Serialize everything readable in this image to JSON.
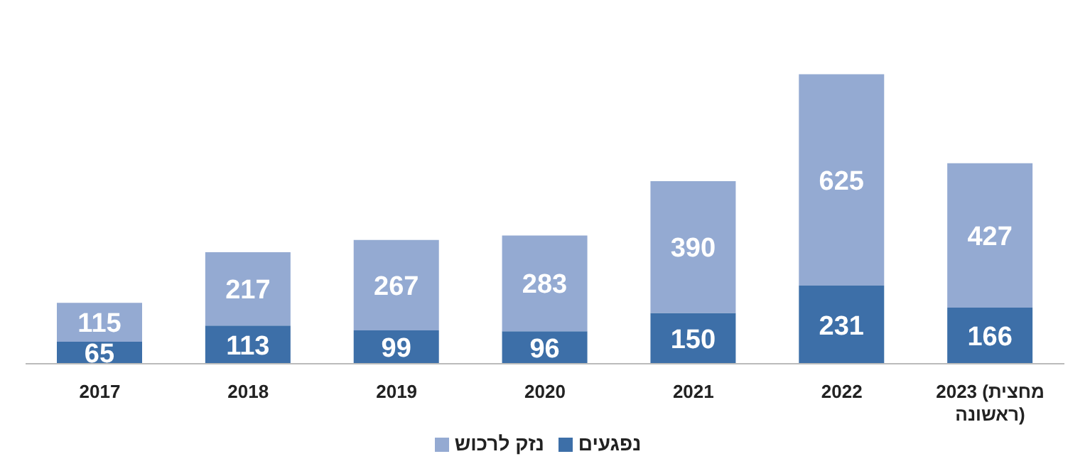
{
  "chart_data": {
    "type": "bar",
    "stacked": true,
    "data_labels": true,
    "legend": "bottom",
    "categories": [
      "2017",
      "2018",
      "2019",
      "2020",
      "2021",
      "2022",
      "2023 (מחצית ראשונה)"
    ],
    "series": [
      {
        "name": "נפגעים",
        "color": "#3d6fa8",
        "values": [
          65,
          113,
          99,
          96,
          150,
          231,
          166
        ]
      },
      {
        "name": "נזק לרכוש",
        "color": "#94aad2",
        "values": [
          115,
          217,
          267,
          283,
          390,
          625,
          427
        ]
      }
    ]
  }
}
